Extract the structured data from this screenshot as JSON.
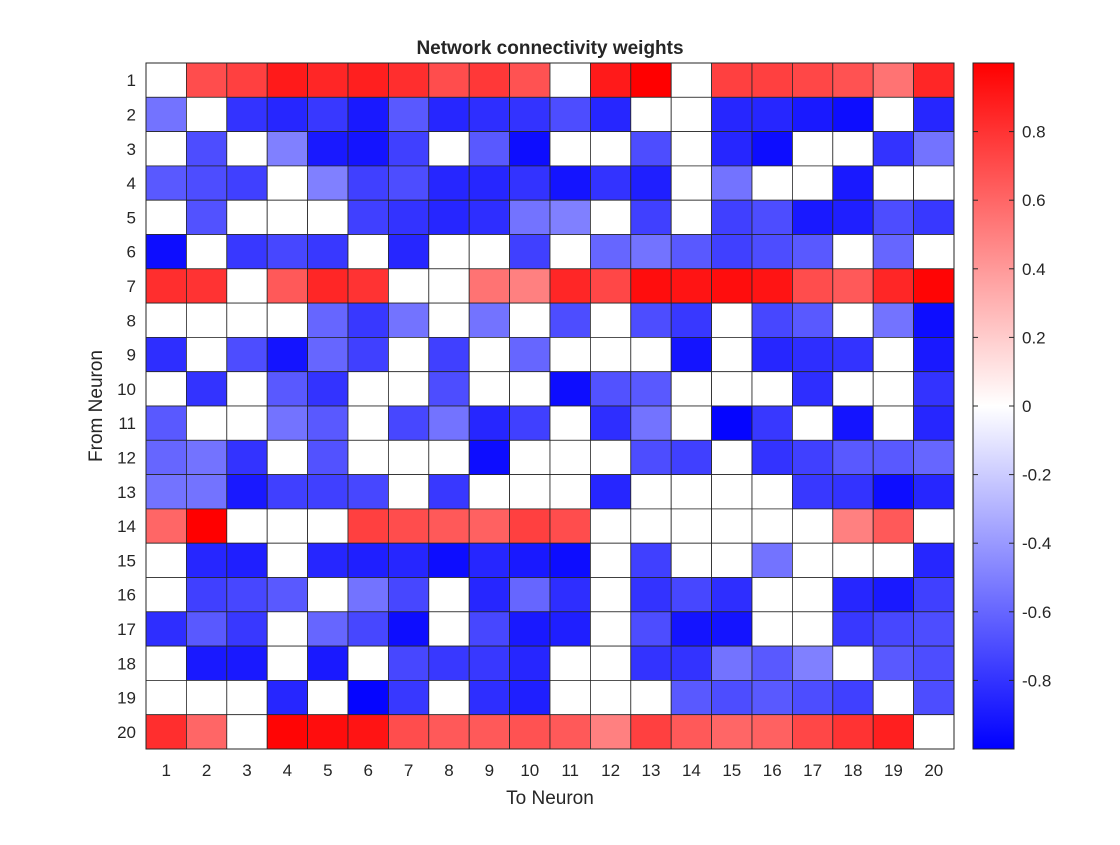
{
  "chart_data": {
    "type": "heatmap",
    "title": "Network connectivity weights",
    "xlabel": "To Neuron",
    "ylabel": "From Neuron",
    "x_categories": [
      "1",
      "2",
      "3",
      "4",
      "5",
      "6",
      "7",
      "8",
      "9",
      "10",
      "11",
      "12",
      "13",
      "14",
      "15",
      "16",
      "17",
      "18",
      "19",
      "20"
    ],
    "y_categories": [
      "1",
      "2",
      "3",
      "4",
      "5",
      "6",
      "7",
      "8",
      "9",
      "10",
      "11",
      "12",
      "13",
      "14",
      "15",
      "16",
      "17",
      "18",
      "19",
      "20"
    ],
    "clim": [
      -1,
      1
    ],
    "colormap": [
      "#0000ff",
      "#ffffff",
      "#ff0000"
    ],
    "colorbar_ticks": [
      0.8,
      0.6,
      0.4,
      0.2,
      0,
      -0.2,
      -0.4,
      -0.6,
      -0.8
    ],
    "colorbar_tick_labels": [
      "0.8",
      "0.6",
      "0.4",
      "0.2",
      "0",
      "-0.2",
      "-0.4",
      "-0.6",
      "-0.8"
    ],
    "grid": true,
    "values": [
      [
        0,
        0.7,
        0.75,
        0.9,
        0.85,
        0.88,
        0.82,
        0.7,
        0.78,
        0.68,
        0,
        0.9,
        1.0,
        0,
        0.75,
        0.75,
        0.72,
        0.68,
        0.55,
        0.85
      ],
      [
        -0.55,
        0,
        -0.8,
        -0.85,
        -0.78,
        -0.9,
        -0.65,
        -0.85,
        -0.82,
        -0.8,
        -0.7,
        -0.85,
        0,
        0,
        -0.85,
        -0.85,
        -0.9,
        -0.95,
        0,
        -0.85
      ],
      [
        0,
        -0.7,
        0,
        -0.5,
        -0.9,
        -0.92,
        -0.75,
        0,
        -0.65,
        -0.95,
        0,
        0,
        -0.7,
        0,
        -0.85,
        -0.95,
        0,
        0,
        -0.8,
        -0.55
      ],
      [
        -0.65,
        -0.7,
        -0.75,
        0,
        -0.5,
        -0.75,
        -0.7,
        -0.85,
        -0.85,
        -0.8,
        -0.92,
        -0.8,
        -0.88,
        0,
        -0.55,
        0,
        0,
        -0.9,
        0,
        0
      ],
      [
        0,
        -0.68,
        0,
        0,
        0,
        -0.75,
        -0.8,
        -0.85,
        -0.82,
        -0.55,
        -0.5,
        0,
        -0.75,
        0,
        -0.75,
        -0.7,
        -0.9,
        -0.88,
        -0.7,
        -0.78
      ],
      [
        -0.95,
        0,
        -0.78,
        -0.72,
        -0.78,
        0,
        -0.85,
        0,
        0,
        -0.75,
        0,
        -0.6,
        -0.55,
        -0.65,
        -0.75,
        -0.7,
        -0.65,
        0,
        -0.6,
        0
      ],
      [
        0.82,
        0.8,
        0,
        0.65,
        0.85,
        0.8,
        0,
        0,
        0.55,
        0.5,
        0.85,
        0.72,
        0.95,
        0.92,
        0.95,
        0.92,
        0.7,
        0.65,
        0.85,
        0.98
      ],
      [
        0,
        0,
        0,
        0,
        -0.6,
        -0.78,
        -0.55,
        0,
        -0.55,
        0,
        -0.7,
        0,
        -0.7,
        -0.78,
        0,
        -0.72,
        -0.65,
        0,
        -0.55,
        -0.95
      ],
      [
        -0.82,
        0,
        -0.7,
        -0.92,
        -0.6,
        -0.75,
        0,
        -0.75,
        0,
        -0.6,
        0,
        0,
        0,
        -0.92,
        0,
        -0.85,
        -0.82,
        -0.8,
        0,
        -0.9
      ],
      [
        0,
        -0.8,
        0,
        -0.65,
        -0.8,
        0,
        0,
        -0.7,
        0,
        0,
        -0.95,
        -0.68,
        -0.65,
        0,
        0,
        0,
        -0.82,
        0,
        0,
        -0.8
      ],
      [
        -0.65,
        0,
        0,
        -0.55,
        -0.65,
        0,
        -0.72,
        -0.55,
        -0.85,
        -0.75,
        0,
        -0.82,
        -0.55,
        0,
        -0.98,
        -0.78,
        0,
        -0.92,
        0,
        -0.85
      ],
      [
        -0.6,
        -0.55,
        -0.8,
        0,
        -0.68,
        0,
        0,
        0,
        -0.95,
        0,
        0,
        0,
        -0.7,
        -0.75,
        0,
        -0.8,
        -0.75,
        -0.65,
        -0.65,
        -0.6
      ],
      [
        -0.55,
        -0.55,
        -0.9,
        -0.75,
        -0.75,
        -0.72,
        0,
        -0.78,
        0,
        0,
        0,
        -0.85,
        0,
        0,
        0,
        0,
        -0.78,
        -0.8,
        -0.95,
        -0.85
      ],
      [
        0.6,
        1.0,
        0,
        0,
        0,
        0.75,
        0.7,
        0.65,
        0.62,
        0.75,
        0.7,
        0,
        0,
        0,
        0,
        0,
        0,
        0.5,
        0.65,
        0
      ],
      [
        0,
        -0.85,
        -0.88,
        0,
        -0.85,
        -0.88,
        -0.85,
        -0.95,
        -0.85,
        -0.9,
        -0.95,
        0,
        -0.75,
        0,
        0,
        -0.55,
        0,
        0,
        0,
        -0.85
      ],
      [
        0,
        -0.75,
        -0.72,
        -0.65,
        0,
        -0.55,
        -0.72,
        0,
        -0.85,
        -0.6,
        -0.82,
        0,
        -0.8,
        -0.72,
        -0.82,
        0,
        0,
        -0.85,
        -0.9,
        -0.75
      ],
      [
        -0.82,
        -0.65,
        -0.78,
        0,
        -0.6,
        -0.72,
        -0.95,
        0,
        -0.72,
        -0.9,
        -0.88,
        0,
        -0.7,
        -0.92,
        -0.92,
        0,
        0,
        -0.78,
        -0.72,
        -0.7
      ],
      [
        0,
        -0.9,
        -0.9,
        0,
        -0.9,
        0,
        -0.72,
        -0.78,
        -0.78,
        -0.85,
        0,
        0,
        -0.8,
        -0.8,
        -0.55,
        -0.65,
        -0.5,
        0,
        -0.65,
        -0.7
      ],
      [
        0,
        0,
        0,
        -0.85,
        0,
        -0.98,
        -0.78,
        0,
        -0.82,
        -0.88,
        0,
        0,
        0,
        -0.65,
        -0.7,
        -0.65,
        -0.7,
        -0.75,
        0,
        -0.7
      ],
      [
        0.82,
        0.6,
        0,
        0.98,
        0.95,
        0.92,
        0.7,
        0.65,
        0.65,
        0.68,
        0.65,
        0.5,
        0.75,
        0.65,
        0.6,
        0.62,
        0.72,
        0.8,
        0.88,
        0
      ]
    ]
  }
}
